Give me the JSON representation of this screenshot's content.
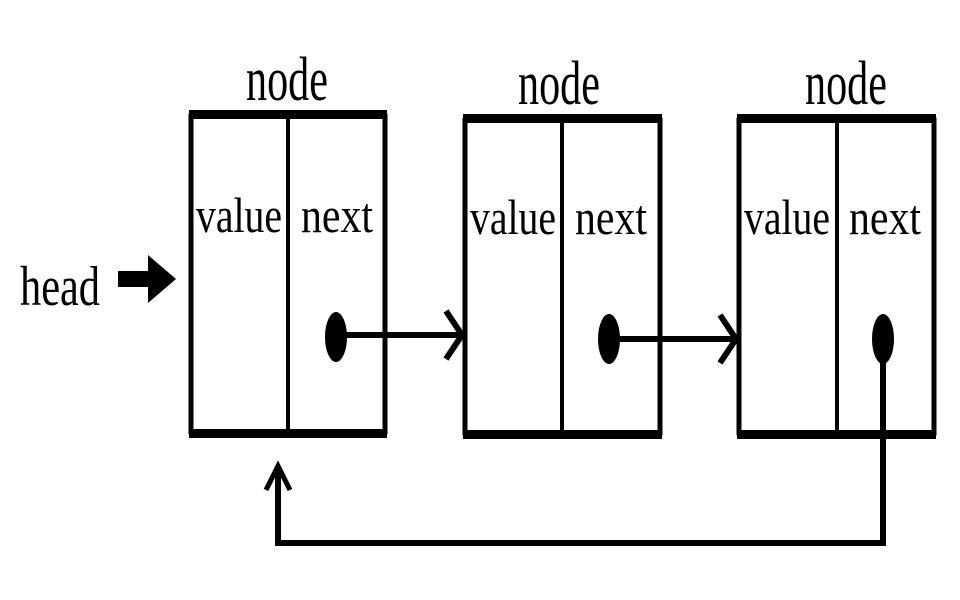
{
  "diagram": {
    "head_label": "head",
    "nodes": [
      {
        "title": "node",
        "field_value": "value",
        "field_next": "next"
      },
      {
        "title": "node",
        "field_value": "value",
        "field_next": "next"
      },
      {
        "title": "node",
        "field_value": "value",
        "field_next": "next"
      }
    ],
    "colors": {
      "ink": "#000000",
      "background": "#ffffff"
    }
  }
}
